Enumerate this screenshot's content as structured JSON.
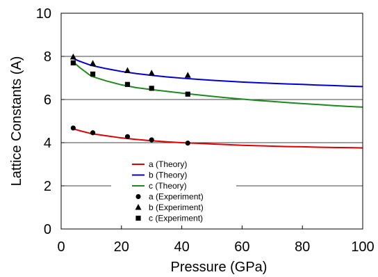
{
  "chart_data": {
    "type": "line",
    "title": "",
    "xlabel": "Pressure (GPa)",
    "ylabel": "Lattice Constants (A)",
    "xlim": [
      0,
      100
    ],
    "ylim": [
      0,
      10
    ],
    "xticks": [
      0,
      20,
      40,
      60,
      80,
      100
    ],
    "yticks": [
      0,
      2,
      4,
      6,
      8,
      10
    ],
    "grid": "horizontal",
    "legend_position": "lower-center",
    "series": [
      {
        "name": "a (Theory)",
        "kind": "line",
        "color": "#e00000",
        "x": [
          4,
          6,
          10,
          15,
          20,
          25,
          30,
          35,
          40,
          45,
          50,
          55,
          60,
          65,
          70,
          75,
          80,
          85,
          90,
          95,
          100
        ],
        "y": [
          4.65,
          4.56,
          4.42,
          4.32,
          4.22,
          4.15,
          4.09,
          4.04,
          4.0,
          3.97,
          3.94,
          3.91,
          3.88,
          3.86,
          3.84,
          3.82,
          3.81,
          3.79,
          3.78,
          3.77,
          3.76
        ]
      },
      {
        "name": "b (Theory)",
        "kind": "line",
        "color": "#0000d0",
        "x": [
          4,
          6,
          10,
          15,
          20,
          25,
          30,
          35,
          40,
          45,
          50,
          55,
          60,
          65,
          70,
          75,
          80,
          85,
          90,
          95,
          100
        ],
        "y": [
          7.9,
          7.78,
          7.58,
          7.43,
          7.3,
          7.2,
          7.12,
          7.05,
          6.99,
          6.94,
          6.89,
          6.85,
          6.81,
          6.78,
          6.75,
          6.72,
          6.7,
          6.67,
          6.65,
          6.62,
          6.6
        ]
      },
      {
        "name": "c (Theory)",
        "kind": "line",
        "color": "#1a8a1a",
        "x": [
          4,
          6,
          10,
          15,
          20,
          25,
          30,
          35,
          40,
          45,
          50,
          55,
          60,
          65,
          70,
          75,
          80,
          85,
          90,
          95,
          100
        ],
        "y": [
          7.75,
          7.5,
          7.08,
          6.86,
          6.68,
          6.55,
          6.46,
          6.38,
          6.3,
          6.22,
          6.15,
          6.08,
          6.02,
          5.96,
          5.91,
          5.86,
          5.81,
          5.77,
          5.72,
          5.68,
          5.65
        ]
      },
      {
        "name": "a (Experiment)",
        "kind": "marker",
        "marker": "circle",
        "color": "#000000",
        "x": [
          4,
          10.5,
          22,
          30,
          42
        ],
        "y": [
          4.68,
          4.46,
          4.28,
          4.13,
          3.98
        ]
      },
      {
        "name": "b (Experiment)",
        "kind": "marker",
        "marker": "triangle",
        "color": "#000000",
        "x": [
          4,
          10.5,
          22,
          30,
          42
        ],
        "y": [
          7.97,
          7.67,
          7.34,
          7.22,
          7.12
        ]
      },
      {
        "name": "c (Experiment)",
        "kind": "marker",
        "marker": "square",
        "color": "#000000",
        "x": [
          4,
          10.5,
          22,
          30,
          42
        ],
        "y": [
          7.7,
          7.18,
          6.7,
          6.52,
          6.25
        ]
      }
    ]
  }
}
